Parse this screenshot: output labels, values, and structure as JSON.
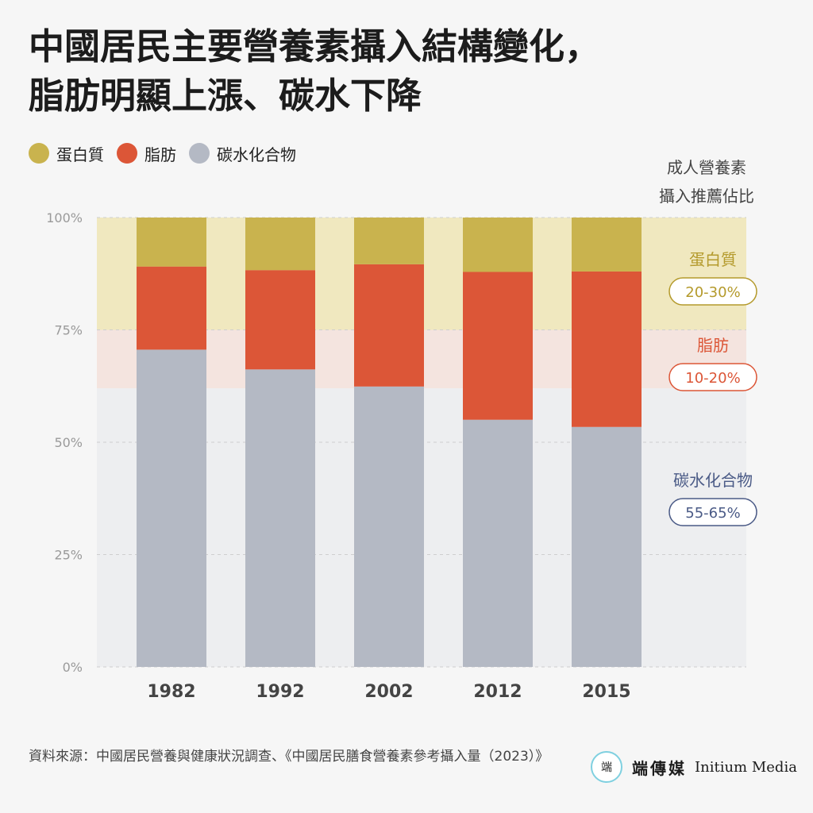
{
  "title": {
    "line1": "中國居民主要營養素攝入結構變化，",
    "line2": "脂肪明顯上漲、碳水下降"
  },
  "legend": [
    {
      "label": "蛋白質",
      "color": "#c9b34e"
    },
    {
      "label": "脂肪",
      "color": "#dc5637"
    },
    {
      "label": "碳水化合物",
      "color": "#b4b9c4"
    }
  ],
  "recommendation": {
    "header_line1": "成人營養素",
    "header_line2": "攝入推薦佔比",
    "bands": [
      {
        "name": "蛋白質",
        "range": "20-30%",
        "from": 75,
        "to": 100,
        "band_color": "#f0e8bf",
        "text_color": "#b49a2c"
      },
      {
        "name": "脂肪",
        "range": "10-20%",
        "from": 62,
        "to": 75,
        "band_color": "#f4e4df",
        "text_color": "#dc5637"
      },
      {
        "name": "碳水化合物",
        "range": "55-65%",
        "from": 0,
        "to": 62,
        "band_color": "#edeef0",
        "text_color": "#4a5a86"
      }
    ]
  },
  "chart_data": {
    "type": "bar",
    "stacked": true,
    "categories": [
      "1982",
      "1992",
      "2002",
      "2012",
      "2015"
    ],
    "series": [
      {
        "name": "碳水化合物",
        "color": "#b4b9c4",
        "values": [
          70.6,
          66.2,
          62.4,
          55.0,
          53.4
        ]
      },
      {
        "name": "脂肪",
        "color": "#dc5637",
        "values": [
          18.5,
          22.1,
          27.2,
          32.9,
          34.6
        ]
      },
      {
        "name": "蛋白質",
        "color": "#c9b34e",
        "values": [
          10.9,
          11.7,
          10.4,
          12.1,
          12.0
        ]
      }
    ],
    "ylim": [
      0,
      100
    ],
    "yticks": [
      0,
      25,
      50,
      75,
      100
    ],
    "ytick_labels": [
      "0%",
      "25%",
      "50%",
      "75%",
      "100%"
    ],
    "grid": true
  },
  "footer": {
    "source": "資料來源：中國居民營養與健康狀況調查、《中國居民膳食營養素參考攝入量（2023）》"
  },
  "logo": {
    "mark": "端",
    "name_cn": "端傳媒",
    "name_en": "Initium Media"
  }
}
